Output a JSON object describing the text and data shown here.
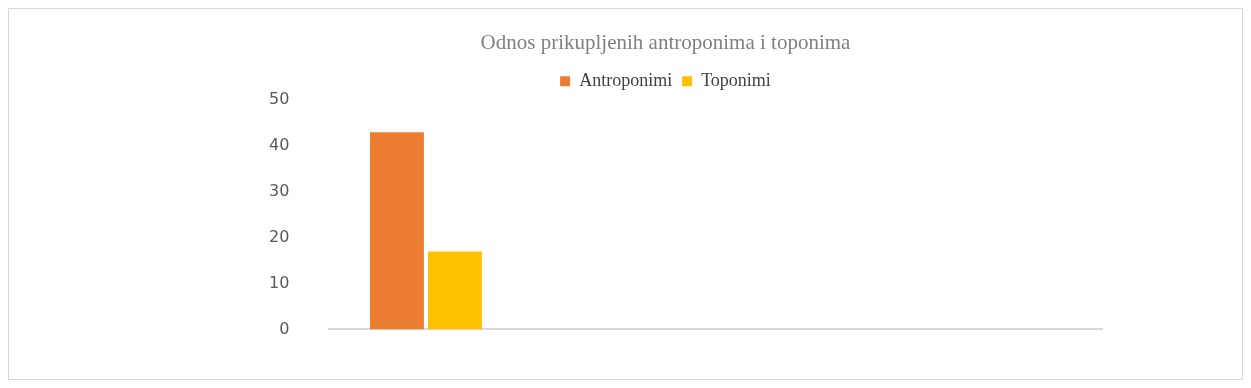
{
  "chart_data": {
    "type": "bar",
    "title": "Odnos prikupljenih antroponima i toponima",
    "categories": [
      null,
      null,
      null,
      null
    ],
    "series": [
      {
        "name": "Antroponimi",
        "color": "#ed7d31",
        "values": [
          43,
          null,
          null,
          null
        ]
      },
      {
        "name": "Toponimi",
        "color": "#ffc000",
        "values": [
          17,
          null,
          null,
          null
        ]
      }
    ],
    "ylim": [
      0,
      50
    ],
    "yticks": [
      0,
      10,
      20,
      30,
      40,
      50
    ],
    "legend": "top"
  }
}
